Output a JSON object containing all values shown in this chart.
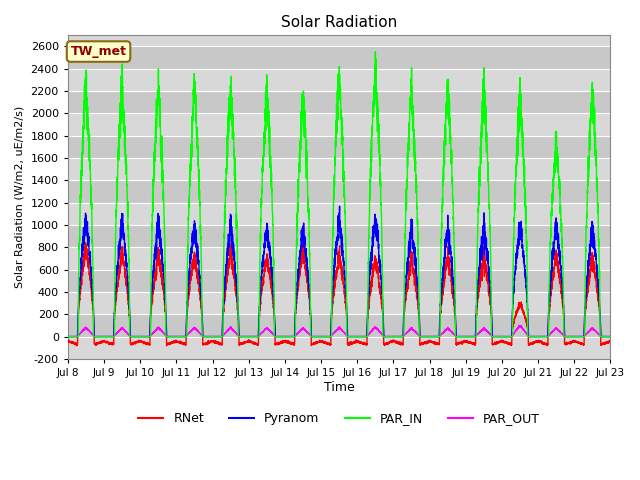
{
  "title": "Solar Radiation",
  "ylabel": "Solar Radiation (W/m2, uE/m2/s)",
  "xlabel": "Time",
  "annotation": "TW_met",
  "ylim": [
    -200,
    2700
  ],
  "yticks": [
    -200,
    0,
    200,
    400,
    600,
    800,
    1000,
    1200,
    1400,
    1600,
    1800,
    2000,
    2200,
    2400,
    2600
  ],
  "colors": {
    "RNet": "#ff0000",
    "Pyranom": "#0000ff",
    "PAR_IN": "#00ff00",
    "PAR_OUT": "#ff00ff"
  },
  "bg_color_light": "#d8d8d8",
  "bg_color_dark": "#c8c8c8",
  "fig_bg": "#ffffff",
  "line_width": 1.0,
  "start_day": 8,
  "end_day": 23,
  "num_days": 15,
  "par_in_peaks": [
    2270,
    2250,
    2250,
    2230,
    2230,
    2200,
    2180,
    2330,
    2390,
    2200,
    2200,
    2200,
    2200,
    1750,
    2200
  ],
  "pyranom_peaks": [
    1050,
    1000,
    1010,
    1000,
    1000,
    1000,
    960,
    1050,
    1060,
    970,
    970,
    1000,
    1000,
    1000,
    960
  ],
  "rnet_peaks": [
    800,
    730,
    730,
    730,
    760,
    730,
    780,
    730,
    700,
    700,
    720,
    730,
    300,
    730,
    700
  ],
  "par_out_peaks": [
    80,
    75,
    80,
    80,
    80,
    80,
    75,
    80,
    85,
    75,
    75,
    75,
    100,
    75,
    75
  ],
  "rnet_night": -80
}
